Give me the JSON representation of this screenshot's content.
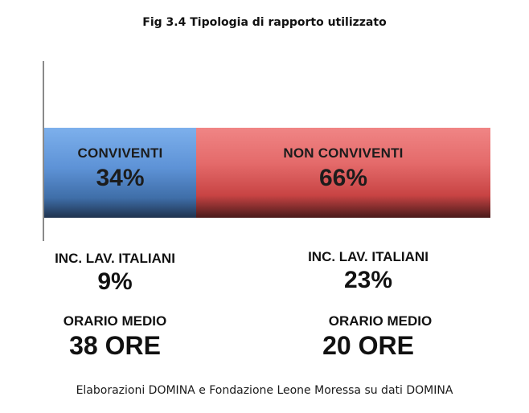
{
  "chart_data": {
    "type": "bar",
    "orientation": "horizontal-stacked",
    "title": "Fig 3.4 Tipologia di rapporto utilizzato",
    "categories": [
      "CONVIVENTI",
      "NON CONVIVENTI"
    ],
    "values": [
      34,
      66
    ],
    "value_labels": [
      "34%",
      "66%"
    ],
    "xlim": [
      0,
      100
    ],
    "grid": false,
    "colors": [
      "#5d92d6",
      "#e46a6a"
    ],
    "annotations": {
      "conviventi": {
        "inc_label": "INC. LAV. ITALIANI",
        "inc_value": "9%",
        "orario_label": "ORARIO MEDIO",
        "orario_value": "38 ORE"
      },
      "non_conviventi": {
        "inc_label": "INC. LAV. ITALIANI",
        "inc_value": "23%",
        "orario_label": "ORARIO MEDIO",
        "orario_value": "20 ORE"
      }
    },
    "source": "Elaborazioni DOMINA e Fondazione Leone Moressa su dati DOMINA"
  }
}
